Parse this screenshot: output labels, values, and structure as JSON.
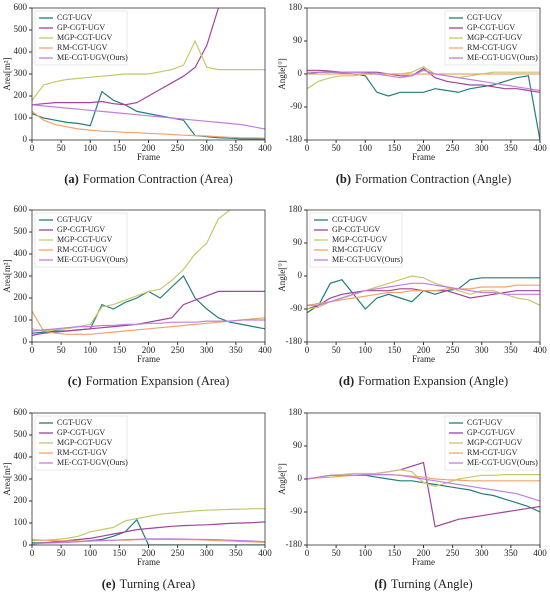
{
  "chart_data": [
    {
      "type": "line",
      "caption_label": "(a)",
      "caption": "Formation Contraction (Area)",
      "xlabel": "Frame",
      "ylabel": "Area[m²]",
      "legend": "upper left",
      "x": [
        0,
        20,
        40,
        60,
        80,
        100,
        120,
        140,
        160,
        180,
        200,
        220,
        240,
        260,
        280,
        300,
        320,
        340,
        360,
        380,
        400
      ],
      "xlim": [
        0,
        400
      ],
      "ylim": [
        0,
        600
      ],
      "xticks": [
        0,
        50,
        100,
        150,
        200,
        250,
        300,
        350,
        400
      ],
      "yticks": [
        0,
        100,
        200,
        300,
        400,
        500,
        600
      ],
      "series": [
        {
          "name": "CGT-UGV",
          "color": "#1f7f7a",
          "values": [
            120,
            100,
            90,
            80,
            75,
            65,
            220,
            180,
            160,
            130,
            120,
            110,
            100,
            90,
            20,
            15,
            10,
            8,
            5,
            5,
            5
          ]
        },
        {
          "name": "GP-CGT-UGV",
          "color": "#a1449c",
          "values": [
            160,
            165,
            170,
            170,
            170,
            170,
            175,
            165,
            160,
            170,
            200,
            230,
            260,
            290,
            330,
            430,
            600,
            null,
            null,
            null,
            null
          ]
        },
        {
          "name": "MGP-CGT-UGV",
          "color": "#c6c86a",
          "values": [
            180,
            250,
            265,
            275,
            280,
            285,
            290,
            295,
            300,
            300,
            300,
            310,
            320,
            340,
            450,
            330,
            320,
            320,
            320,
            320,
            320
          ]
        },
        {
          "name": "RM-CGT-UGV",
          "color": "#f2a36a",
          "values": [
            130,
            90,
            70,
            60,
            50,
            45,
            40,
            38,
            35,
            33,
            30,
            28,
            25,
            22,
            20,
            18,
            15,
            12,
            10,
            10,
            8
          ]
        },
        {
          "name": "ME-CGT-UGV(Ours)",
          "color": "#c27ee0",
          "values": [
            160,
            155,
            150,
            145,
            140,
            135,
            130,
            125,
            120,
            115,
            110,
            105,
            100,
            95,
            90,
            85,
            80,
            75,
            70,
            60,
            50
          ]
        }
      ]
    },
    {
      "type": "line",
      "caption_label": "(b)",
      "caption": "Formation Contraction (Angle)",
      "xlabel": "Frame",
      "ylabel": "Angle[°]",
      "legend": "upper right",
      "x": [
        0,
        20,
        40,
        60,
        80,
        100,
        120,
        140,
        160,
        180,
        200,
        220,
        240,
        260,
        280,
        300,
        320,
        340,
        360,
        380,
        400
      ],
      "xlim": [
        0,
        400
      ],
      "ylim": [
        -180,
        180
      ],
      "xticks": [
        0,
        50,
        100,
        150,
        200,
        250,
        300,
        350,
        400
      ],
      "yticks": [
        -180,
        -90,
        0,
        90,
        180
      ],
      "series": [
        {
          "name": "CGT-UGV",
          "color": "#1f7f7a",
          "values": [
            0,
            5,
            5,
            3,
            0,
            -5,
            -50,
            -60,
            -50,
            -50,
            -50,
            -40,
            -45,
            -50,
            -40,
            -35,
            -30,
            -20,
            -10,
            -5,
            -180
          ]
        },
        {
          "name": "GP-CGT-UGV",
          "color": "#a1449c",
          "values": [
            10,
            10,
            8,
            5,
            5,
            5,
            5,
            0,
            -5,
            -5,
            15,
            -10,
            -20,
            -25,
            -30,
            -30,
            -35,
            -40,
            -40,
            -45,
            -50
          ]
        },
        {
          "name": "MGP-CGT-UGV",
          "color": "#c6c86a",
          "values": [
            -40,
            -20,
            -10,
            -5,
            -5,
            0,
            0,
            0,
            0,
            5,
            20,
            0,
            -5,
            -10,
            -5,
            0,
            5,
            5,
            5,
            5,
            5
          ]
        },
        {
          "name": "RM-CGT-UGV",
          "color": "#f2a36a",
          "values": [
            0,
            0,
            0,
            0,
            0,
            0,
            0,
            0,
            0,
            0,
            0,
            0,
            0,
            0,
            0,
            0,
            0,
            0,
            0,
            0,
            0
          ]
        },
        {
          "name": "ME-CGT-UGV(Ours)",
          "color": "#c27ee0",
          "values": [
            5,
            5,
            5,
            5,
            5,
            3,
            0,
            -5,
            -10,
            -5,
            10,
            0,
            -5,
            -10,
            -15,
            -20,
            -25,
            -30,
            -35,
            -40,
            -45
          ]
        }
      ]
    },
    {
      "type": "line",
      "caption_label": "(c)",
      "caption": "Formation Expansion (Area)",
      "xlabel": "Frame",
      "ylabel": "Area[m²]",
      "legend": "upper left",
      "x": [
        0,
        20,
        40,
        60,
        80,
        100,
        120,
        140,
        160,
        180,
        200,
        220,
        240,
        260,
        280,
        300,
        320,
        340,
        360,
        380,
        400
      ],
      "xlim": [
        0,
        400
      ],
      "ylim": [
        0,
        600
      ],
      "xticks": [
        0,
        50,
        100,
        150,
        200,
        250,
        300,
        350,
        400
      ],
      "yticks": [
        0,
        100,
        200,
        300,
        400,
        500,
        600
      ],
      "series": [
        {
          "name": "CGT-UGV",
          "color": "#1f7f7a",
          "values": [
            40,
            45,
            50,
            50,
            55,
            60,
            170,
            150,
            180,
            200,
            230,
            200,
            250,
            300,
            200,
            150,
            110,
            90,
            80,
            70,
            60
          ]
        },
        {
          "name": "GP-CGT-UGV",
          "color": "#a1449c",
          "values": [
            30,
            40,
            45,
            50,
            55,
            60,
            65,
            70,
            75,
            80,
            90,
            100,
            110,
            170,
            190,
            210,
            230,
            230,
            230,
            230,
            230
          ]
        },
        {
          "name": "MGP-CGT-UGV",
          "color": "#c6c86a",
          "values": [
            60,
            50,
            55,
            60,
            70,
            80,
            160,
            170,
            190,
            210,
            230,
            240,
            280,
            330,
            400,
            450,
            560,
            600,
            null,
            null,
            null
          ]
        },
        {
          "name": "RM-CGT-UGV",
          "color": "#f2a36a",
          "values": [
            140,
            50,
            40,
            35,
            35,
            35,
            40,
            45,
            50,
            55,
            60,
            65,
            70,
            75,
            80,
            85,
            90,
            95,
            100,
            105,
            110
          ]
        },
        {
          "name": "ME-CGT-UGV(Ours)",
          "color": "#c27ee0",
          "values": [
            50,
            55,
            60,
            65,
            70,
            70,
            75,
            75,
            80,
            80,
            85,
            85,
            90,
            90,
            90,
            95,
            95,
            95,
            100,
            100,
            100
          ]
        }
      ]
    },
    {
      "type": "line",
      "caption_label": "(d)",
      "caption": "Formation Expansion (Angle)",
      "xlabel": "Frame",
      "ylabel": "Angle[°]",
      "legend": "upper left",
      "x": [
        0,
        20,
        40,
        60,
        80,
        100,
        120,
        140,
        160,
        180,
        200,
        220,
        240,
        260,
        280,
        300,
        320,
        340,
        360,
        380,
        400
      ],
      "xlim": [
        0,
        400
      ],
      "ylim": [
        -180,
        180
      ],
      "xticks": [
        0,
        50,
        100,
        150,
        200,
        250,
        300,
        350,
        400
      ],
      "yticks": [
        -180,
        -90,
        0,
        90,
        180
      ],
      "series": [
        {
          "name": "CGT-UGV",
          "color": "#1f7f7a",
          "values": [
            -100,
            -80,
            -20,
            -10,
            -50,
            -90,
            -60,
            -50,
            -60,
            -70,
            -40,
            -50,
            -40,
            -35,
            -10,
            -5,
            -5,
            -5,
            -5,
            -5,
            -5
          ]
        },
        {
          "name": "GP-CGT-UGV",
          "color": "#a1449c",
          "values": [
            -90,
            -80,
            -60,
            -50,
            -45,
            -40,
            -40,
            -40,
            -35,
            -35,
            -40,
            -40,
            -40,
            -50,
            -60,
            -55,
            -50,
            -45,
            -40,
            -40,
            -40
          ]
        },
        {
          "name": "MGP-CGT-UGV",
          "color": "#c6c86a",
          "values": [
            -90,
            -85,
            -70,
            -60,
            -50,
            -40,
            -30,
            -20,
            -10,
            0,
            -5,
            -20,
            -30,
            -40,
            -50,
            -40,
            -40,
            -50,
            -60,
            -65,
            -80
          ]
        },
        {
          "name": "RM-CGT-UGV",
          "color": "#f2a36a",
          "values": [
            -80,
            -75,
            -70,
            -65,
            -60,
            -55,
            -50,
            -45,
            -45,
            -40,
            -40,
            -40,
            -35,
            -35,
            -35,
            -30,
            -30,
            -30,
            -25,
            -25,
            -25
          ]
        },
        {
          "name": "ME-CGT-UGV(Ours)",
          "color": "#c27ee0",
          "values": [
            -80,
            -80,
            -70,
            -60,
            -50,
            -40,
            -35,
            -30,
            -25,
            -20,
            -20,
            -25,
            -30,
            -35,
            -40,
            -45,
            -45,
            -50,
            -50,
            -50,
            -50
          ]
        }
      ]
    },
    {
      "type": "line",
      "caption_label": "(e)",
      "caption": "Turning (Area)",
      "xlabel": "Frame",
      "ylabel": "Area[m²]",
      "legend": "upper left",
      "x": [
        0,
        20,
        40,
        60,
        80,
        100,
        120,
        140,
        160,
        180,
        200,
        220,
        240,
        260,
        280,
        300,
        320,
        340,
        360,
        380,
        400
      ],
      "xlim": [
        0,
        400
      ],
      "ylim": [
        0,
        600
      ],
      "xticks": [
        0,
        50,
        100,
        150,
        200,
        250,
        300,
        350,
        400
      ],
      "yticks": [
        0,
        100,
        200,
        300,
        400,
        500,
        600
      ],
      "series": [
        {
          "name": "CGT-UGV",
          "color": "#1f7f7a",
          "values": [
            10,
            10,
            12,
            15,
            15,
            20,
            25,
            40,
            60,
            115,
            0,
            0,
            0,
            0,
            0,
            0,
            0,
            0,
            0,
            0,
            0
          ]
        },
        {
          "name": "GP-CGT-UGV",
          "color": "#a1449c",
          "values": [
            5,
            10,
            15,
            20,
            25,
            30,
            40,
            50,
            60,
            70,
            75,
            80,
            85,
            88,
            90,
            92,
            95,
            98,
            100,
            102,
            105
          ]
        },
        {
          "name": "MGP-CGT-UGV",
          "color": "#c6c86a",
          "values": [
            20,
            22,
            25,
            30,
            40,
            60,
            70,
            80,
            110,
            120,
            130,
            140,
            145,
            150,
            155,
            158,
            160,
            162,
            163,
            165,
            165
          ]
        },
        {
          "name": "RM-CGT-UGV",
          "color": "#f2a36a",
          "values": [
            25,
            22,
            20,
            18,
            18,
            18,
            20,
            22,
            22,
            24,
            25,
            25,
            25,
            24,
            24,
            22,
            20,
            18,
            16,
            14,
            12
          ]
        },
        {
          "name": "ME-CGT-UGV(Ours)",
          "color": "#c27ee0",
          "values": [
            5,
            8,
            10,
            12,
            15,
            18,
            20,
            22,
            24,
            26,
            28,
            28,
            28,
            27,
            26,
            25,
            24,
            22,
            20,
            18,
            15
          ]
        }
      ]
    },
    {
      "type": "line",
      "caption_label": "(f)",
      "caption": "Turning (Angle)",
      "xlabel": "Frame",
      "ylabel": "Angle[°]",
      "legend": "upper right",
      "x": [
        0,
        20,
        40,
        60,
        80,
        100,
        120,
        140,
        160,
        180,
        200,
        220,
        240,
        260,
        280,
        300,
        320,
        340,
        360,
        380,
        400
      ],
      "xlim": [
        0,
        400
      ],
      "ylim": [
        -180,
        180
      ],
      "xticks": [
        0,
        50,
        100,
        150,
        200,
        250,
        300,
        350,
        400
      ],
      "yticks": [
        -180,
        -90,
        0,
        90,
        180
      ],
      "series": [
        {
          "name": "CGT-UGV",
          "color": "#1f7f7a",
          "values": [
            0,
            5,
            10,
            10,
            10,
            10,
            5,
            0,
            -5,
            -5,
            -10,
            -15,
            -20,
            -25,
            -30,
            -40,
            -45,
            -55,
            -65,
            -75,
            -90
          ]
        },
        {
          "name": "GP-CGT-UGV",
          "color": "#a1449c",
          "values": [
            0,
            5,
            10,
            10,
            10,
            10,
            15,
            20,
            25,
            35,
            45,
            -130,
            -120,
            -110,
            -105,
            -100,
            -95,
            -90,
            -85,
            -80,
            -75
          ]
        },
        {
          "name": "MGP-CGT-UGV",
          "color": "#c6c86a",
          "values": [
            0,
            5,
            10,
            12,
            15,
            15,
            15,
            20,
            25,
            20,
            -10,
            -20,
            -10,
            0,
            5,
            10,
            10,
            12,
            12,
            12,
            12
          ]
        },
        {
          "name": "RM-CGT-UGV",
          "color": "#f2a36a",
          "values": [
            0,
            3,
            5,
            8,
            10,
            12,
            12,
            12,
            10,
            8,
            5,
            0,
            -2,
            -3,
            -5,
            -5,
            -5,
            -5,
            -5,
            -5,
            -5
          ]
        },
        {
          "name": "ME-CGT-UGV(Ours)",
          "color": "#c27ee0",
          "values": [
            0,
            5,
            10,
            10,
            10,
            12,
            12,
            12,
            10,
            5,
            0,
            -5,
            -10,
            -15,
            -20,
            -25,
            -30,
            -35,
            -40,
            -50,
            -60
          ]
        }
      ]
    }
  ]
}
